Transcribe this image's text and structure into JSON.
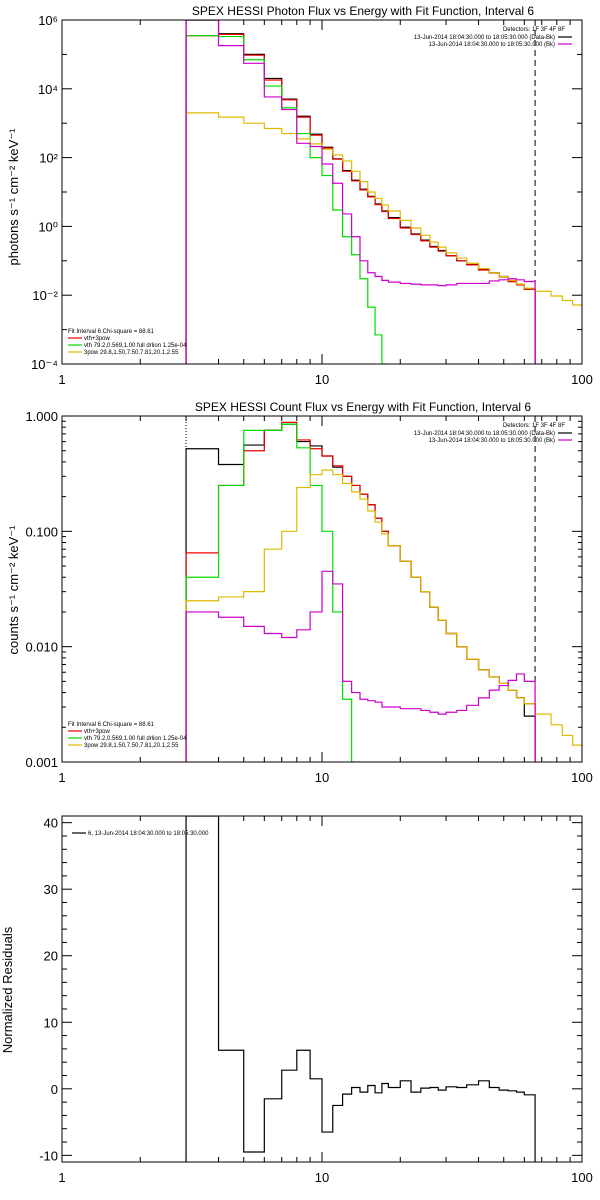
{
  "chart_data": [
    {
      "type": "line",
      "title": "SPEX HESSI Photon Flux vs Energy with Fit Function, Interval 6",
      "xlabel": "",
      "ylabel": "photons s⁻¹ cm⁻² keV⁻¹",
      "xscale": "log",
      "yscale": "log",
      "xlim": [
        1,
        100
      ],
      "ylim": [
        0.0001,
        1000000
      ],
      "xticks": [
        1,
        10,
        100
      ],
      "xtick_labels": [
        "1",
        "10",
        "100"
      ],
      "yticks": [
        0.0001,
        0.01,
        1,
        100,
        10000,
        1000000
      ],
      "ytick_labels": [
        "10⁻⁴",
        "10⁻²",
        "10⁰",
        "10²",
        "10⁴",
        "10⁶"
      ],
      "vlines": [
        {
          "x": 3,
          "style": "dotted",
          "color": "#000000"
        },
        {
          "x": 66,
          "style": "dashed",
          "color": "#000000"
        }
      ],
      "legend_top": {
        "header": "Detectors: 1F 3F 4F 8F",
        "entries": [
          {
            "label": "13-Jun-2014 18:04:30.000 to 18:05:30.000 (Data-Bk)",
            "color": "#000000"
          },
          {
            "label": "13-Jun-2014 18:04:30.000 to 18:05:30.000 (Bk)",
            "color": "#cc00cc"
          }
        ]
      },
      "legend_bottom": {
        "header": "Fit Interval  6    Chi-square = 88.61",
        "entries": [
          {
            "label": "vth+3pow",
            "color": "#ee0000"
          },
          {
            "label": "vth 79.2,0.569,1.00  full drlion 1.25e-04",
            "color": "#00dd00"
          },
          {
            "label": "3pow 29.8,1.50,7.50,7.81,20.1,2.55",
            "color": "#ddbb00"
          }
        ]
      },
      "edges": [
        3,
        4,
        5,
        6,
        7,
        8,
        9,
        10,
        11,
        12,
        13,
        14,
        15,
        16,
        17,
        18,
        20,
        22,
        24,
        26,
        28,
        30,
        33,
        36,
        40,
        44,
        48,
        52,
        56,
        60,
        66
      ],
      "series": [
        {
          "name": "13-Jun-2014 18:04:30.000 to 18:05:30.000 (Data-Bk)",
          "color": "#000000",
          "x_end": 66,
          "values": [
            3000000,
            400000,
            100000,
            20000,
            5000,
            1600,
            480,
            200,
            92,
            42,
            22,
            12,
            7.5,
            4.5,
            2.8,
            1.8,
            0.95,
            0.6,
            0.4,
            0.26,
            0.2,
            0.14,
            0.1,
            0.078,
            0.055,
            0.045,
            0.035,
            0.025,
            0.02,
            0.015
          ]
        },
        {
          "name": "vth+3pow",
          "color": "#ee0000",
          "x_end": 66,
          "values": [
            350000,
            380000,
            95000,
            18000,
            4800,
            1500,
            450,
            190,
            90,
            40,
            21,
            11.5,
            7.2,
            4.3,
            2.7,
            1.7,
            0.9,
            0.58,
            0.38,
            0.25,
            0.19,
            0.14,
            0.1,
            0.076,
            0.054,
            0.044,
            0.034,
            0.025,
            0.02,
            0.015
          ]
        },
        {
          "name": "vth 79.2,0.569,1.00  full drlion 1.25e-04",
          "color": "#00dd00",
          "x_end": 17,
          "values": [
            350000,
            330000,
            70000,
            12000,
            2800,
            500,
            100,
            30,
            3,
            0.5,
            0.15,
            0.03,
            0.0045,
            0.0007,
            8e-05
          ]
        },
        {
          "name": "3pow 29.8,1.50,7.50,7.81,20.1,2.55",
          "color": "#ddbb00",
          "x_end": 100,
          "values": [
            2000,
            1500,
            1000,
            700,
            500,
            350,
            250,
            175,
            120,
            80,
            40,
            20,
            10,
            6.5,
            4.2,
            2.8,
            1.5,
            0.9,
            0.55,
            0.35,
            0.25,
            0.17,
            0.12,
            0.085,
            0.06,
            0.045,
            0.035,
            0.027,
            0.021,
            0.016,
            0.013,
            0.0095,
            0.007,
            0.0052,
            0.004
          ],
          "extra_edges": [
            76,
            84,
            92,
            100
          ]
        },
        {
          "name": "13-Jun-2014 18:04:30.000 to 18:05:30.000 (Bk)",
          "color": "#cc00cc",
          "x_end": 66,
          "values": [
            1200000,
            180000,
            55000,
            5800,
            2500,
            260,
            210,
            65,
            18,
            2.3,
            0.5,
            0.1,
            0.045,
            0.035,
            0.027,
            0.024,
            0.022,
            0.021,
            0.02,
            0.02,
            0.019,
            0.02,
            0.022,
            0.022,
            0.022,
            0.026,
            0.028,
            0.03,
            0.028,
            0.025
          ]
        }
      ]
    },
    {
      "type": "line",
      "title": "SPEX HESSI Count Flux vs Energy with Fit Function, Interval 6",
      "xlabel": "",
      "ylabel": "counts s⁻¹ cm⁻² keV⁻¹",
      "xscale": "log",
      "yscale": "log",
      "xlim": [
        1,
        100
      ],
      "ylim": [
        0.001,
        1.0
      ],
      "xticks": [
        1,
        10,
        100
      ],
      "xtick_labels": [
        "1",
        "10",
        "100"
      ],
      "yticks": [
        0.001,
        0.01,
        0.1,
        1.0
      ],
      "ytick_labels": [
        "0.001",
        "0.010",
        "0.100",
        "1.000"
      ],
      "vlines": [
        {
          "x": 3,
          "style": "dotted",
          "color": "#000000"
        },
        {
          "x": 66,
          "style": "dashed",
          "color": "#000000"
        }
      ],
      "legend_top": {
        "header": "Detectors: 1F 3F 4F 8F",
        "entries": [
          {
            "label": "13-Jun-2014 18:04:30.000 to 18:05:30.000 (Data-Bk)",
            "color": "#000000"
          },
          {
            "label": "13-Jun-2014 18:04:30.000 to 18:05:30.000 (Bk)",
            "color": "#cc00cc"
          }
        ]
      },
      "legend_bottom": {
        "header": "Fit Interval  6    Chi-square = 88.61",
        "entries": [
          {
            "label": "vth+3pow",
            "color": "#ee0000"
          },
          {
            "label": "vth 79.2,0.569,1.00  full drlion 1.25e-04",
            "color": "#00dd00"
          },
          {
            "label": "3pow 29.8,1.50,7.50,7.81,20.1,2.55",
            "color": "#ddbb00"
          }
        ]
      },
      "edges": [
        3,
        4,
        5,
        6,
        7,
        8,
        9,
        10,
        11,
        12,
        13,
        14,
        15,
        16,
        17,
        18,
        20,
        22,
        24,
        26,
        28,
        30,
        33,
        36,
        40,
        44,
        48,
        52,
        56,
        60,
        66
      ],
      "series": [
        {
          "name": "13-Jun-2014 18:04:30.000 to 18:05:30.000 (Data-Bk)",
          "color": "#000000",
          "x_end": 66,
          "values": [
            0.52,
            0.38,
            0.56,
            0.75,
            0.85,
            0.6,
            0.55,
            0.45,
            0.36,
            0.3,
            0.25,
            0.21,
            0.17,
            0.13,
            0.1,
            0.075,
            0.055,
            0.04,
            0.03,
            0.022,
            0.017,
            0.013,
            0.01,
            0.0078,
            0.0063,
            0.0055,
            0.0048,
            0.0042,
            0.0036,
            0.0025
          ]
        },
        {
          "name": "vth+3pow",
          "color": "#ee0000",
          "x_end": 66,
          "values": [
            0.065,
            0.25,
            0.5,
            0.75,
            0.88,
            0.62,
            0.52,
            0.45,
            0.37,
            0.3,
            0.25,
            0.21,
            0.17,
            0.13,
            0.1,
            0.075,
            0.055,
            0.04,
            0.03,
            0.022,
            0.017,
            0.013,
            0.01,
            0.0078,
            0.0063,
            0.0055,
            0.0048,
            0.0042,
            0.0036,
            0.0032
          ]
        },
        {
          "name": "vth 79.2,0.569,1.00  full drlion 1.25e-04",
          "color": "#00dd00",
          "x_end": 14,
          "values": [
            0.04,
            0.25,
            0.75,
            0.75,
            0.85,
            0.53,
            0.25,
            0.1,
            0.02,
            0.0035,
            0.001
          ]
        },
        {
          "name": "3pow 29.8,1.50,7.50,7.81,20.1,2.55",
          "color": "#ddbb00",
          "x_end": 100,
          "values": [
            0.025,
            0.027,
            0.03,
            0.07,
            0.1,
            0.24,
            0.31,
            0.34,
            0.31,
            0.26,
            0.22,
            0.19,
            0.15,
            0.12,
            0.095,
            0.075,
            0.055,
            0.04,
            0.03,
            0.022,
            0.017,
            0.013,
            0.01,
            0.0078,
            0.0063,
            0.0055,
            0.0048,
            0.0042,
            0.0036,
            0.0032,
            0.0026,
            0.0021,
            0.0017,
            0.0014,
            0.0011
          ],
          "extra_edges": [
            76,
            84,
            92,
            100
          ]
        },
        {
          "name": "13-Jun-2014 18:04:30.000 to 18:05:30.000 (Bk)",
          "color": "#cc00cc",
          "x_end": 66,
          "values": [
            0.02,
            0.018,
            0.015,
            0.013,
            0.012,
            0.014,
            0.02,
            0.045,
            0.035,
            0.005,
            0.004,
            0.0035,
            0.0034,
            0.0033,
            0.003,
            0.003,
            0.0029,
            0.0029,
            0.0028,
            0.0027,
            0.0026,
            0.0027,
            0.0028,
            0.0031,
            0.0036,
            0.0042,
            0.0046,
            0.0051,
            0.0058,
            0.005
          ]
        }
      ]
    },
    {
      "type": "line",
      "title": "",
      "xlabel": "",
      "ylabel": "Normalized Residuals",
      "xscale": "log",
      "yscale": "linear",
      "xlim": [
        1,
        100
      ],
      "ylim": [
        -11,
        41
      ],
      "xticks": [
        1,
        10,
        100
      ],
      "xtick_labels": [
        "1",
        "10",
        "100"
      ],
      "yticks": [
        -10,
        0,
        10,
        20,
        30,
        40
      ],
      "ytick_labels": [
        "-10",
        "0",
        "10",
        "20",
        "30",
        "40"
      ],
      "legend_top_left": {
        "label": "6, 13-Jun-2014 18:04:30.000 to 18:05:30.000",
        "color": "#000000"
      },
      "edges": [
        3,
        4,
        5,
        6,
        7,
        8,
        9,
        10,
        11,
        12,
        13,
        14,
        15,
        16,
        17,
        18,
        20,
        22,
        24,
        26,
        28,
        30,
        33,
        36,
        40,
        44,
        48,
        52,
        56,
        60,
        66
      ],
      "series": [
        {
          "name": "6, 13-Jun-2014 18:04:30.000 to 18:05:30.000",
          "color": "#000000",
          "x_end": 66,
          "values": [
            41,
            5.8,
            -9.5,
            -1.5,
            2.8,
            5.8,
            1.5,
            -6.5,
            -2.5,
            -0.8,
            0.2,
            -0.5,
            0.5,
            -0.6,
            0.8,
            0.2,
            1.2,
            -0.5,
            0.1,
            0.2,
            -0.2,
            0.3,
            0.2,
            0.6,
            1.2,
            0.2,
            -0.2,
            -0.3,
            -0.5,
            -0.9
          ]
        }
      ]
    }
  ]
}
